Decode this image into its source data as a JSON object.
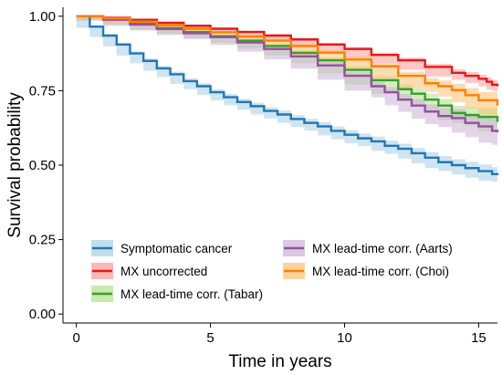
{
  "chart_data": {
    "type": "line",
    "subtype": "survival-step",
    "xlabel": "Time in years",
    "ylabel": "Survival probability",
    "xlim": [
      -0.5,
      15.7
    ],
    "ylim": [
      -0.03,
      1.03
    ],
    "x_ticks": [
      0,
      5,
      10,
      15
    ],
    "x_tick_labels": [
      "0",
      "5",
      "10",
      "15"
    ],
    "y_ticks": [
      0,
      0.25,
      0.5,
      0.75,
      1
    ],
    "y_tick_labels": [
      "0.00",
      "0.25",
      "0.50",
      "0.75",
      "1.00"
    ],
    "grid": false,
    "legend_position": "bottom-left",
    "legend_columns": 2,
    "confidence_bands": true,
    "series": [
      {
        "name": "Symptomatic cancer",
        "color": "#1f78b4",
        "band_color": "#a6cee3",
        "x": [
          0,
          0.5,
          1,
          1.5,
          2,
          2.5,
          3,
          3.5,
          4,
          4.5,
          5,
          5.5,
          6,
          6.5,
          7,
          7.5,
          8,
          8.5,
          9,
          9.5,
          10,
          10.5,
          11,
          11.5,
          12,
          12.5,
          13,
          13.5,
          14,
          14.5,
          15,
          15.5,
          15.7
        ],
        "y": [
          1.0,
          0.965,
          0.935,
          0.905,
          0.875,
          0.85,
          0.825,
          0.805,
          0.782,
          0.765,
          0.745,
          0.728,
          0.712,
          0.698,
          0.682,
          0.67,
          0.655,
          0.642,
          0.63,
          0.615,
          0.602,
          0.59,
          0.58,
          0.565,
          0.555,
          0.54,
          0.525,
          0.51,
          0.5,
          0.49,
          0.48,
          0.47,
          0.467
        ],
        "band": [
          0,
          0.004,
          0.005,
          0.006,
          0.007,
          0.008,
          0.008,
          0.009,
          0.009,
          0.01,
          0.01,
          0.011,
          0.011,
          0.012,
          0.012,
          0.013,
          0.013,
          0.014,
          0.014,
          0.015,
          0.015,
          0.016,
          0.016,
          0.017,
          0.017,
          0.018,
          0.019,
          0.02,
          0.02,
          0.021,
          0.022,
          0.023,
          0.023
        ]
      },
      {
        "name": "MX uncorrected",
        "color": "#e31a1c",
        "band_color": "#fb9a99",
        "x": [
          0,
          1,
          2,
          3,
          4,
          5,
          6,
          7,
          8,
          9,
          10,
          11,
          12,
          13,
          14,
          14.5,
          15,
          15.3,
          15.5,
          15.7
        ],
        "y": [
          1.0,
          0.995,
          0.988,
          0.978,
          0.968,
          0.958,
          0.947,
          0.935,
          0.922,
          0.905,
          0.89,
          0.87,
          0.852,
          0.83,
          0.81,
          0.8,
          0.79,
          0.78,
          0.77,
          0.765
        ],
        "band": [
          0,
          0.002,
          0.003,
          0.003,
          0.004,
          0.004,
          0.005,
          0.005,
          0.006,
          0.006,
          0.007,
          0.008,
          0.009,
          0.01,
          0.012,
          0.013,
          0.014,
          0.015,
          0.016,
          0.016
        ]
      },
      {
        "name": "MX lead-time corr. (Tabar)",
        "color": "#33a02c",
        "band_color": "#b2df8a",
        "x": [
          0,
          1,
          2,
          3,
          4,
          5,
          6,
          7,
          8,
          9,
          10,
          11,
          12,
          12.5,
          13,
          13.5,
          14,
          14.5,
          15,
          15.7
        ],
        "y": [
          1.0,
          0.99,
          0.975,
          0.96,
          0.947,
          0.933,
          0.918,
          0.9,
          0.877,
          0.852,
          0.82,
          0.785,
          0.755,
          0.74,
          0.72,
          0.7,
          0.675,
          0.668,
          0.662,
          0.645
        ],
        "band": [
          0,
          0.003,
          0.004,
          0.005,
          0.006,
          0.006,
          0.007,
          0.008,
          0.009,
          0.01,
          0.012,
          0.014,
          0.016,
          0.018,
          0.02,
          0.022,
          0.025,
          0.027,
          0.03,
          0.032
        ]
      },
      {
        "name": "MX lead-time corr. (Aarts)",
        "color": "#984ea3",
        "band_color": "#cab2d6",
        "x": [
          0,
          1,
          2,
          3,
          4,
          5,
          6,
          7,
          8,
          9,
          10,
          11,
          11.5,
          12,
          12.5,
          13,
          13.5,
          14,
          14.5,
          15,
          15.5,
          15.7
        ],
        "y": [
          1.0,
          0.988,
          0.972,
          0.957,
          0.943,
          0.93,
          0.912,
          0.89,
          0.865,
          0.835,
          0.8,
          0.765,
          0.745,
          0.72,
          0.7,
          0.68,
          0.665,
          0.658,
          0.642,
          0.63,
          0.615,
          0.61
        ],
        "band": [
          0,
          0.003,
          0.004,
          0.005,
          0.006,
          0.007,
          0.008,
          0.009,
          0.01,
          0.011,
          0.013,
          0.015,
          0.017,
          0.019,
          0.021,
          0.024,
          0.027,
          0.03,
          0.033,
          0.036,
          0.04,
          0.042
        ]
      },
      {
        "name": "MX lead-time corr. (Choi)",
        "color": "#ff7f00",
        "band_color": "#fdbf6f",
        "x": [
          0,
          1,
          2,
          3,
          4,
          5,
          6,
          7,
          8,
          9,
          10,
          11,
          12,
          13,
          13.5,
          14,
          14.5,
          15,
          15.7
        ],
        "y": [
          1.0,
          0.993,
          0.982,
          0.97,
          0.958,
          0.946,
          0.932,
          0.918,
          0.9,
          0.878,
          0.855,
          0.832,
          0.8,
          0.775,
          0.765,
          0.752,
          0.735,
          0.718,
          0.7
        ],
        "band": [
          0,
          0.002,
          0.003,
          0.004,
          0.005,
          0.005,
          0.006,
          0.007,
          0.008,
          0.009,
          0.01,
          0.012,
          0.014,
          0.017,
          0.019,
          0.021,
          0.024,
          0.027,
          0.03
        ]
      }
    ],
    "legend_order": [
      0,
      3,
      1,
      4,
      2
    ]
  }
}
